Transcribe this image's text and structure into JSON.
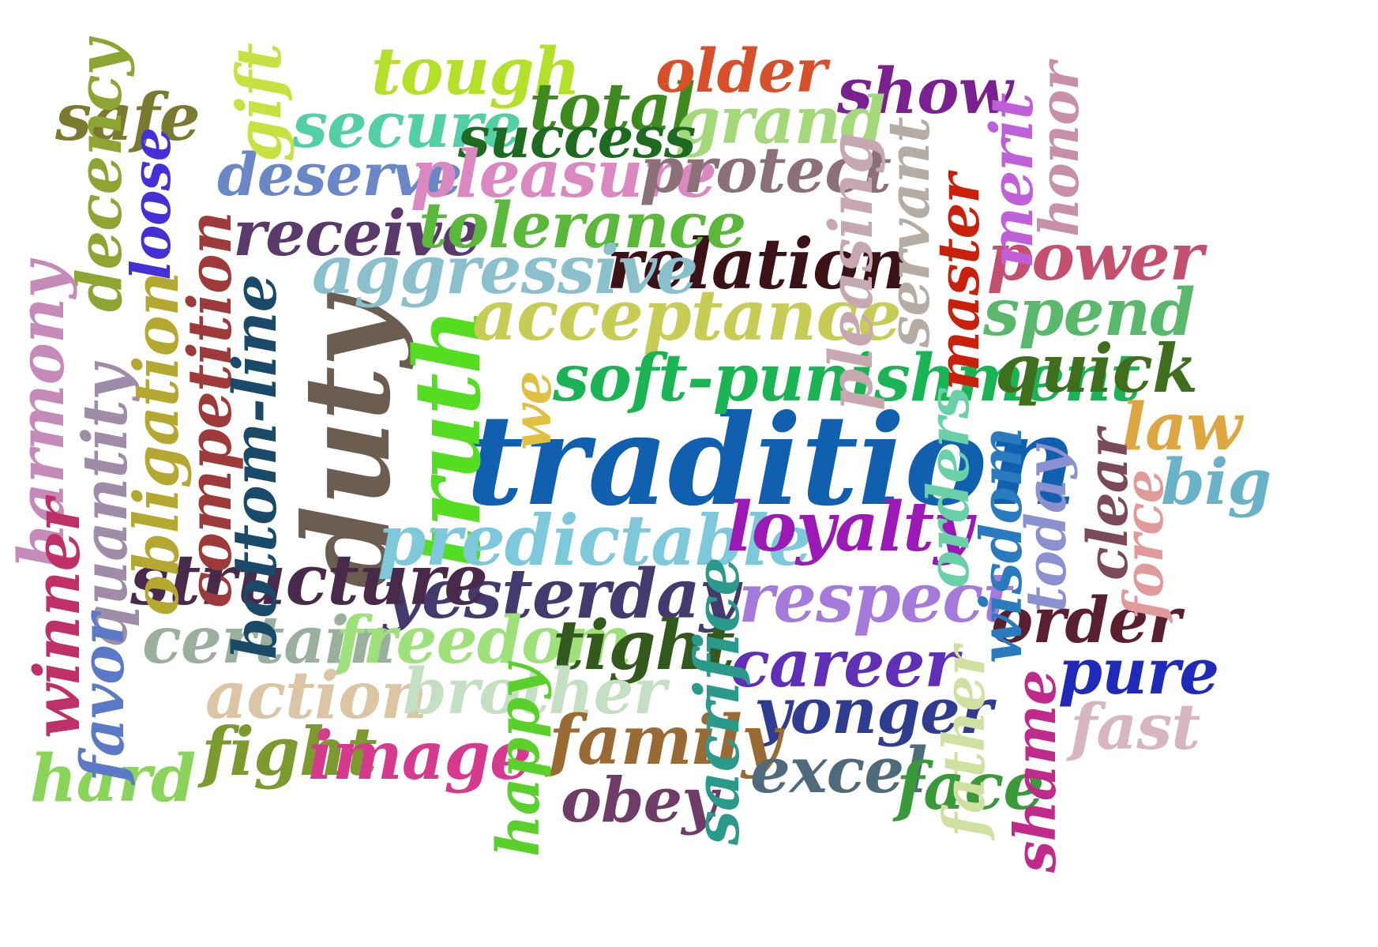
{
  "words": [
    {
      "text": "tradition",
      "color": "#1160b0",
      "orientation": "horizontal"
    },
    {
      "text": "duty",
      "color": "#6b5d4f",
      "orientation": "vertical"
    },
    {
      "text": "truth",
      "color": "#55dd22",
      "orientation": "vertical"
    },
    {
      "text": "relation",
      "color": "#3b1218",
      "orientation": "horizontal"
    },
    {
      "text": "acceptance",
      "color": "#c7cc55",
      "orientation": "horizontal"
    },
    {
      "text": "soft-punishment",
      "color": "#1bb455",
      "orientation": "horizontal"
    },
    {
      "text": "predictable",
      "color": "#7ec8db",
      "orientation": "horizontal"
    },
    {
      "text": "loyalty",
      "color": "#9b1ab5",
      "orientation": "horizontal"
    },
    {
      "text": "respect",
      "color": "#a47adb",
      "orientation": "horizontal"
    },
    {
      "text": "yesterday",
      "color": "#453a6e",
      "orientation": "horizontal"
    },
    {
      "text": "structure",
      "color": "#4a2a4a",
      "orientation": "horizontal"
    },
    {
      "text": "certain",
      "color": "#9aaf9e",
      "orientation": "horizontal"
    },
    {
      "text": "freedom",
      "color": "#9ee07a",
      "orientation": "horizontal"
    },
    {
      "text": "tight",
      "color": "#34591c",
      "orientation": "horizontal"
    },
    {
      "text": "career",
      "color": "#5f2fb8",
      "orientation": "horizontal"
    },
    {
      "text": "yonger",
      "color": "#2f3c8f",
      "orientation": "horizontal"
    },
    {
      "text": "action",
      "color": "#dcc5a5",
      "orientation": "horizontal"
    },
    {
      "text": "brother",
      "color": "#c5dfc2",
      "orientation": "horizontal"
    },
    {
      "text": "fight",
      "color": "#7c9a2e",
      "orientation": "horizontal"
    },
    {
      "text": "image",
      "color": "#d63a8f",
      "orientation": "horizontal"
    },
    {
      "text": "family",
      "color": "#9a6a35",
      "orientation": "horizontal"
    },
    {
      "text": "obey",
      "color": "#6e3c66",
      "orientation": "horizontal"
    },
    {
      "text": "excel",
      "color": "#4f6a7a",
      "orientation": "horizontal"
    },
    {
      "text": "face",
      "color": "#3a9a3a",
      "orientation": "horizontal"
    },
    {
      "text": "hard",
      "color": "#8ad45a",
      "orientation": "horizontal"
    },
    {
      "text": "order",
      "color": "#5a2030",
      "orientation": "horizontal"
    },
    {
      "text": "pure",
      "color": "#1f2ab8",
      "orientation": "horizontal"
    },
    {
      "text": "fast",
      "color": "#d8b5c2",
      "orientation": "horizontal"
    },
    {
      "text": "quick",
      "color": "#3f6e1c",
      "orientation": "horizontal"
    },
    {
      "text": "spend",
      "color": "#5ab86c",
      "orientation": "horizontal"
    },
    {
      "text": "power",
      "color": "#c45070",
      "orientation": "horizontal"
    },
    {
      "text": "law",
      "color": "#dda640",
      "orientation": "horizontal"
    },
    {
      "text": "big",
      "color": "#6ab2c8",
      "orientation": "horizontal"
    },
    {
      "text": "safe",
      "color": "#7a7a30",
      "orientation": "horizontal"
    },
    {
      "text": "tough",
      "color": "#b5e02a",
      "orientation": "horizontal"
    },
    {
      "text": "total",
      "color": "#3e8a1e",
      "orientation": "horizontal"
    },
    {
      "text": "older",
      "color": "#d8502a",
      "orientation": "horizontal"
    },
    {
      "text": "show",
      "color": "#7a2090",
      "orientation": "horizontal"
    },
    {
      "text": "grand",
      "color": "#a5d87a",
      "orientation": "horizontal"
    },
    {
      "text": "secure",
      "color": "#52cfa5",
      "orientation": "horizontal"
    },
    {
      "text": "success",
      "color": "#1e6a20",
      "orientation": "horizontal"
    },
    {
      "text": "deserve",
      "color": "#6a88c8",
      "orientation": "horizontal"
    },
    {
      "text": "pleasure",
      "color": "#da88c0",
      "orientation": "horizontal"
    },
    {
      "text": "protect",
      "color": "#8c7078",
      "orientation": "horizontal"
    },
    {
      "text": "receive",
      "color": "#5a3a6a",
      "orientation": "horizontal"
    },
    {
      "text": "tolerance",
      "color": "#5ab83a",
      "orientation": "horizontal"
    },
    {
      "text": "aggressive",
      "color": "#8ac0cc",
      "orientation": "horizontal"
    },
    {
      "text": "gift",
      "color": "#c8e040",
      "orientation": "vertical"
    },
    {
      "text": "decency",
      "color": "#8ea532",
      "orientation": "vertical"
    },
    {
      "text": "loose",
      "color": "#4530d8",
      "orientation": "vertical"
    },
    {
      "text": "harmony",
      "color": "#c58ab8",
      "orientation": "vertical"
    },
    {
      "text": "quantity",
      "color": "#9e8ca8",
      "orientation": "vertical"
    },
    {
      "text": "obligation",
      "color": "#b5a830",
      "orientation": "vertical"
    },
    {
      "text": "competition",
      "color": "#9e3a3a",
      "orientation": "vertical"
    },
    {
      "text": "bottom-line",
      "color": "#1a4a6a",
      "orientation": "vertical"
    },
    {
      "text": "winner",
      "color": "#c03068",
      "orientation": "vertical"
    },
    {
      "text": "favor",
      "color": "#5a7ac8",
      "orientation": "vertical"
    },
    {
      "text": "we",
      "color": "#e0c040",
      "orientation": "vertical"
    },
    {
      "text": "sacrifice",
      "color": "#2a9a8a",
      "orientation": "vertical"
    },
    {
      "text": "happy",
      "color": "#5ad02a",
      "orientation": "vertical"
    },
    {
      "text": "pleasing",
      "color": "#c8a8b0",
      "orientation": "vertical"
    },
    {
      "text": "servant",
      "color": "#b5aca5",
      "orientation": "vertical"
    },
    {
      "text": "master",
      "color": "#c8200a",
      "orientation": "vertical"
    },
    {
      "text": "merit",
      "color": "#c060d8",
      "orientation": "vertical"
    },
    {
      "text": "honor",
      "color": "#c890a8",
      "orientation": "vertical"
    },
    {
      "text": "orders",
      "color": "#6ad0a8",
      "orientation": "vertical"
    },
    {
      "text": "wisdom",
      "color": "#2a7ac0",
      "orientation": "vertical"
    },
    {
      "text": "today",
      "color": "#8a90d0",
      "orientation": "vertical"
    },
    {
      "text": "clear",
      "color": "#7a4a5a",
      "orientation": "vertical"
    },
    {
      "text": "force",
      "color": "#e09a9a",
      "orientation": "vertical"
    },
    {
      "text": "father",
      "color": "#d0e0a0",
      "orientation": "vertical"
    },
    {
      "text": "shame",
      "color": "#c02a8a",
      "orientation": "vertical"
    }
  ]
}
